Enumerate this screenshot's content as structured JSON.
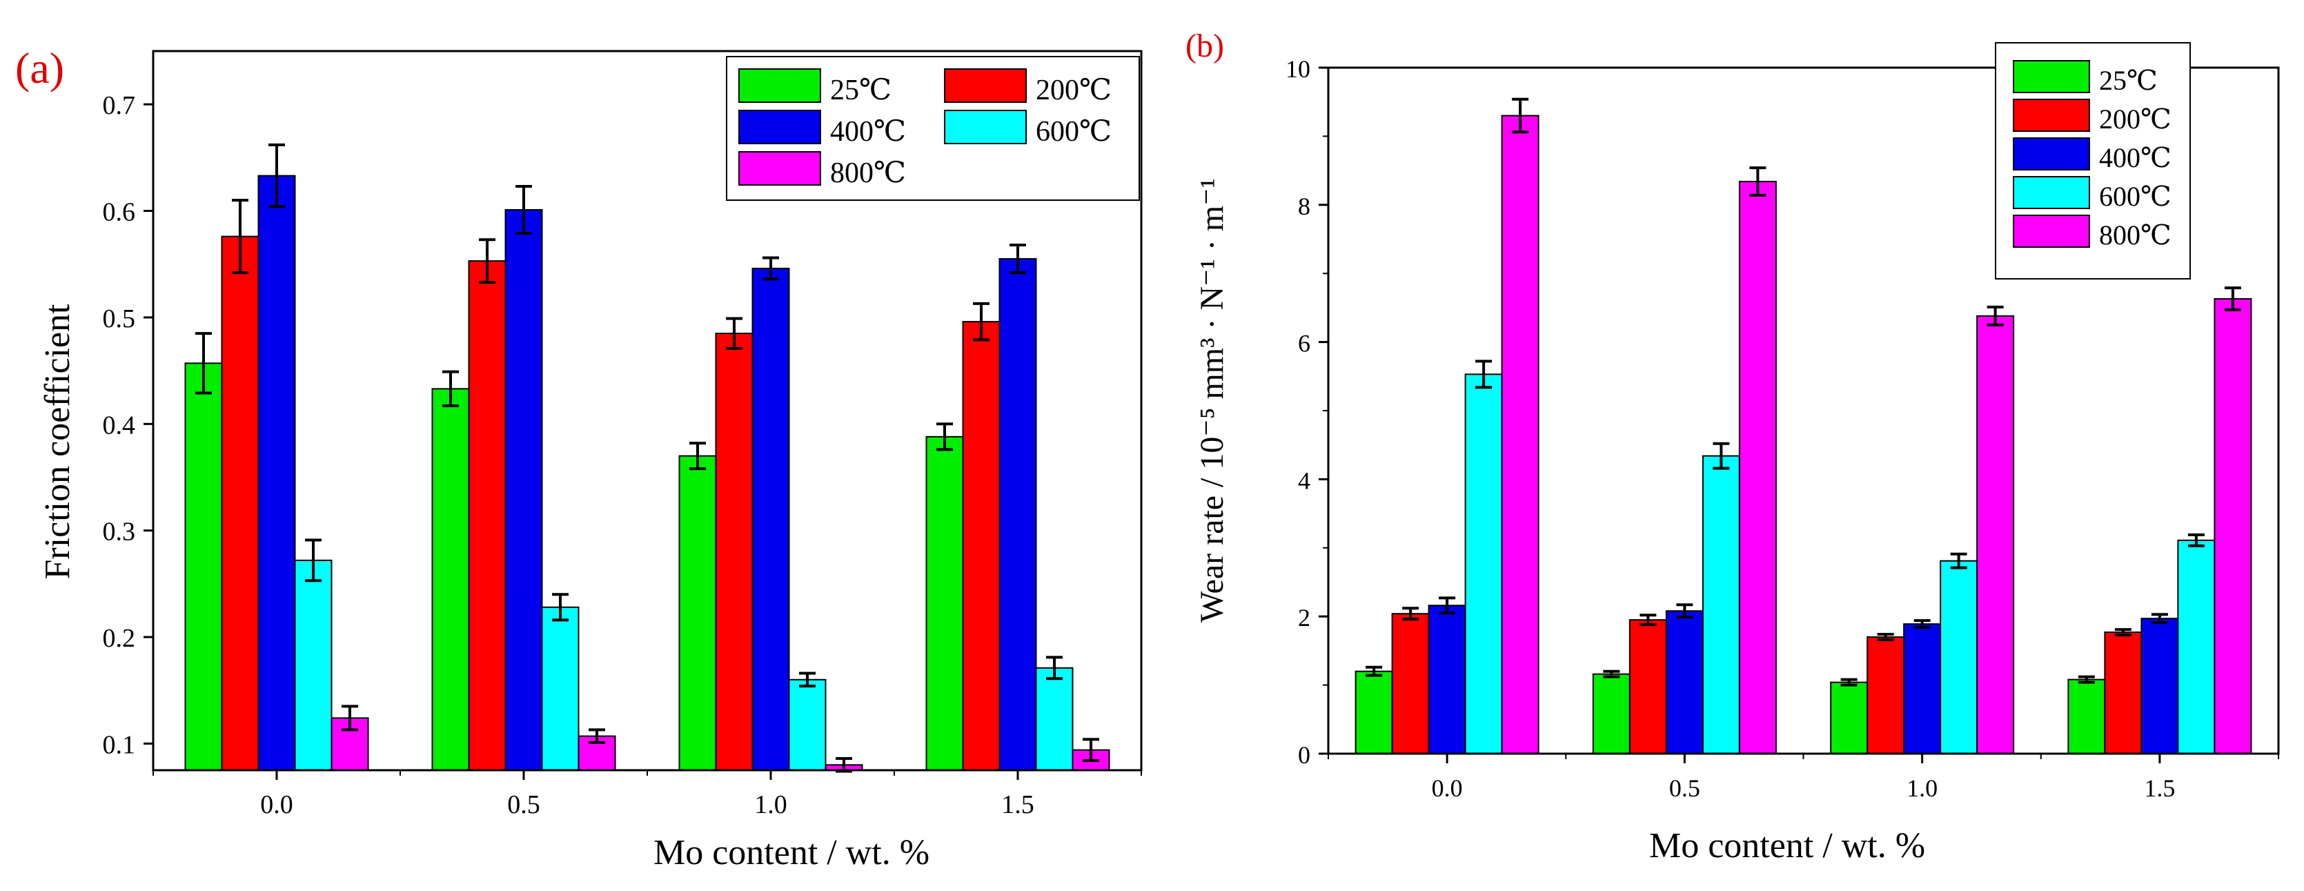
{
  "colors": {
    "25C": "#00ee00",
    "200C": "#ff0000",
    "400C": "#0000ee",
    "600C": "#00ffff",
    "800C": "#ff00ff",
    "panel_label": "#e00000",
    "axis": "#000000"
  },
  "chart_data": [
    {
      "type": "bar",
      "panel_label": "(a)",
      "title": "",
      "xlabel": "Mo content / wt. %",
      "ylabel": "Friction coefficient",
      "categories": [
        "0.0",
        "0.5",
        "1.0",
        "1.5"
      ],
      "ylim": [
        0.075,
        0.75
      ],
      "yticks": [
        "0.1",
        "0.2",
        "0.3",
        "0.4",
        "0.5",
        "0.6",
        "0.7"
      ],
      "legend_position": "top-right",
      "legend_layout": "two-columns",
      "series": [
        {
          "name": "25℃",
          "color_key": "25C",
          "values": [
            0.457,
            0.433,
            0.37,
            0.388
          ],
          "errors": [
            0.028,
            0.016,
            0.012,
            0.012
          ]
        },
        {
          "name": "200℃",
          "color_key": "200C",
          "values": [
            0.576,
            0.553,
            0.485,
            0.496
          ],
          "errors": [
            0.034,
            0.02,
            0.014,
            0.017
          ]
        },
        {
          "name": "400℃",
          "color_key": "400C",
          "values": [
            0.633,
            0.601,
            0.546,
            0.555
          ],
          "errors": [
            0.029,
            0.022,
            0.01,
            0.013
          ]
        },
        {
          "name": "600℃",
          "color_key": "600C",
          "values": [
            0.272,
            0.228,
            0.16,
            0.171
          ],
          "errors": [
            0.019,
            0.012,
            0.006,
            0.01
          ]
        },
        {
          "name": "800℃",
          "color_key": "800C",
          "values": [
            0.124,
            0.107,
            0.08,
            0.094
          ],
          "errors": [
            0.011,
            0.006,
            0.006,
            0.01
          ]
        }
      ]
    },
    {
      "type": "bar",
      "panel_label": "(b)",
      "title": "",
      "xlabel": "Mo content / wt. %",
      "ylabel": "Wear rate / 10⁻⁵ mm³ · N⁻¹ · m⁻¹",
      "categories": [
        "0.0",
        "0.5",
        "1.0",
        "1.5"
      ],
      "ylim": [
        0,
        10
      ],
      "yticks": [
        "0",
        "2",
        "4",
        "6",
        "8",
        "10"
      ],
      "legend_position": "top-right",
      "legend_layout": "one-column",
      "series": [
        {
          "name": "25℃",
          "color_key": "25C",
          "values": [
            1.2,
            1.16,
            1.04,
            1.08
          ],
          "errors": [
            0.06,
            0.04,
            0.04,
            0.04
          ]
        },
        {
          "name": "200℃",
          "color_key": "200C",
          "values": [
            2.04,
            1.95,
            1.7,
            1.77
          ],
          "errors": [
            0.08,
            0.07,
            0.04,
            0.04
          ]
        },
        {
          "name": "400℃",
          "color_key": "400C",
          "values": [
            2.16,
            2.08,
            1.89,
            1.97
          ],
          "errors": [
            0.11,
            0.09,
            0.05,
            0.06
          ]
        },
        {
          "name": "600℃",
          "color_key": "600C",
          "values": [
            5.53,
            4.34,
            2.81,
            3.11
          ],
          "errors": [
            0.19,
            0.18,
            0.1,
            0.08
          ]
        },
        {
          "name": "800℃",
          "color_key": "800C",
          "values": [
            9.3,
            8.34,
            6.38,
            6.63
          ],
          "errors": [
            0.24,
            0.2,
            0.13,
            0.16
          ]
        }
      ]
    }
  ]
}
